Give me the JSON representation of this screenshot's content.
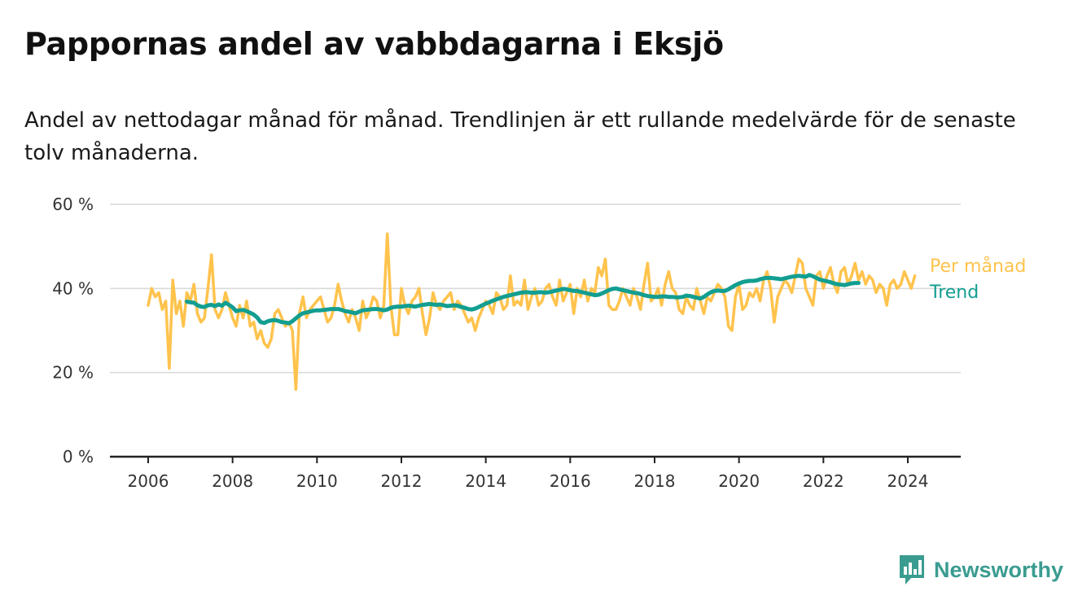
{
  "title": "Pappornas andel av vabbdagarna i Eksjö",
  "subtitle": "Andel av nettodagar månad för månad. Trendlinjen är ett rullande medelvärde för de senaste tolv månaderna.",
  "brand": {
    "name": "Newsworthy",
    "logo_icon": "bar-chart-speech-bubble-icon",
    "color": "#3a9c90"
  },
  "colors": {
    "monthly": "#ffc34d",
    "trend": "#129e91",
    "grid": "#d9d9d9",
    "axis": "#222222"
  },
  "chart_data": {
    "type": "line",
    "title": "Pappornas andel av vabbdagarna i Eksjö",
    "ylim": [
      0,
      60
    ],
    "yticks": [
      0,
      20,
      40,
      60
    ],
    "ytick_labels": [
      "0 %",
      "20 %",
      "40 %",
      "60 %"
    ],
    "xlim": [
      2006,
      2024.5
    ],
    "xticks": [
      "2006",
      "2008",
      "2010",
      "2012",
      "2014",
      "2016",
      "2018",
      "2020",
      "2022",
      "2024"
    ],
    "grid": true,
    "legend": "right",
    "series": [
      {
        "name": "Per månad",
        "color": "#ffc34d",
        "start": "2006-01",
        "frequency": "monthly",
        "values": [
          36,
          40,
          38,
          39,
          35,
          37,
          21,
          42,
          34,
          37,
          31,
          39,
          37,
          41,
          34,
          32,
          33,
          40,
          48,
          35,
          33,
          35,
          39,
          36,
          33,
          31,
          36,
          33,
          37,
          31,
          32,
          28,
          30,
          27,
          26,
          28,
          34,
          35,
          33,
          31,
          32,
          30,
          16,
          34,
          38,
          33,
          35,
          36,
          37,
          38,
          35,
          32,
          33,
          36,
          41,
          37,
          34,
          32,
          35,
          33,
          30,
          37,
          33,
          35,
          38,
          37,
          33,
          36,
          53,
          36,
          29,
          29,
          40,
          36,
          34,
          37,
          38,
          40,
          34,
          29,
          33,
          39,
          36,
          35,
          37,
          38,
          39,
          35,
          37,
          36,
          34,
          32,
          33,
          30,
          33,
          35,
          37,
          36,
          34,
          39,
          38,
          35,
          36,
          43,
          36,
          37,
          36,
          42,
          35,
          38,
          40,
          36,
          37,
          40,
          41,
          38,
          36,
          42,
          37,
          39,
          41,
          34,
          40,
          38,
          42,
          37,
          40,
          39,
          45,
          43,
          47,
          36,
          35,
          35,
          37,
          40,
          38,
          36,
          40,
          38,
          35,
          41,
          46,
          37,
          38,
          40,
          36,
          41,
          44,
          40,
          39,
          35,
          34,
          38,
          36,
          35,
          40,
          37,
          34,
          38,
          37,
          39,
          41,
          40,
          38,
          31,
          30,
          38,
          41,
          35,
          36,
          39,
          38,
          40,
          37,
          42,
          44,
          40,
          32,
          38,
          40,
          42,
          41,
          39,
          43,
          47,
          46,
          40,
          38,
          36,
          43,
          44,
          40,
          43,
          45,
          41,
          39,
          44,
          45,
          41,
          43,
          46,
          42,
          44,
          41,
          43,
          42,
          39,
          41,
          40,
          36,
          41,
          42,
          40,
          41,
          44,
          42,
          40,
          43
        ]
      },
      {
        "name": "Trend",
        "color": "#129e91",
        "start": "2006-12",
        "frequency": "monthly",
        "values": [
          36.9,
          36.7,
          36.6,
          36.0,
          35.7,
          35.6,
          36.0,
          36.1,
          35.8,
          36.2,
          35.9,
          36.6,
          36.1,
          35.5,
          34.6,
          34.8,
          34.9,
          34.6,
          34.2,
          33.8,
          33.1,
          32.0,
          31.8,
          32.2,
          32.4,
          32.5,
          32.3,
          32.0,
          31.9,
          31.7,
          32.2,
          32.9,
          33.6,
          34.1,
          34.3,
          34.5,
          34.7,
          34.8,
          34.8,
          34.9,
          35.0,
          35.1,
          35.1,
          35.1,
          34.9,
          34.6,
          34.5,
          34.3,
          34.1,
          34.5,
          34.8,
          34.9,
          35.0,
          35.1,
          35.1,
          35.0,
          34.8,
          35.0,
          35.4,
          35.6,
          35.7,
          35.7,
          35.8,
          35.9,
          35.8,
          35.7,
          35.9,
          36.1,
          36.2,
          36.3,
          36.2,
          36.1,
          36.2,
          36.0,
          35.8,
          35.9,
          36.0,
          35.9,
          35.6,
          35.4,
          35.1,
          35.0,
          35.2,
          35.6,
          36.0,
          36.4,
          36.7,
          37.1,
          37.4,
          37.7,
          38.0,
          38.2,
          38.4,
          38.6,
          38.8,
          39.0,
          39.1,
          39.1,
          39.0,
          39.0,
          39.1,
          39.1,
          39.0,
          39.1,
          39.3,
          39.5,
          39.7,
          39.9,
          39.8,
          39.6,
          39.4,
          39.4,
          39.2,
          39.0,
          38.8,
          38.6,
          38.4,
          38.5,
          38.8,
          39.2,
          39.6,
          39.9,
          40.0,
          39.8,
          39.6,
          39.4,
          39.2,
          39.0,
          38.9,
          38.7,
          38.4,
          38.2,
          38.1,
          38.0,
          38.0,
          38.1,
          38.1,
          38.0,
          38.0,
          37.9,
          37.9,
          38.0,
          38.3,
          38.2,
          38.0,
          37.8,
          37.6,
          38.0,
          38.6,
          39.1,
          39.4,
          39.5,
          39.4,
          39.4,
          39.8,
          40.3,
          40.8,
          41.2,
          41.5,
          41.7,
          41.8,
          41.8,
          41.9,
          42.2,
          42.4,
          42.5,
          42.5,
          42.4,
          42.3,
          42.2,
          42.4,
          42.6,
          42.8,
          42.9,
          43.0,
          42.9,
          42.8,
          43.2,
          42.9,
          42.5,
          42.1,
          41.9,
          41.7,
          41.5,
          41.2,
          41.0,
          40.9,
          40.8,
          41.0,
          41.2,
          41.3,
          41.3
        ]
      }
    ]
  }
}
